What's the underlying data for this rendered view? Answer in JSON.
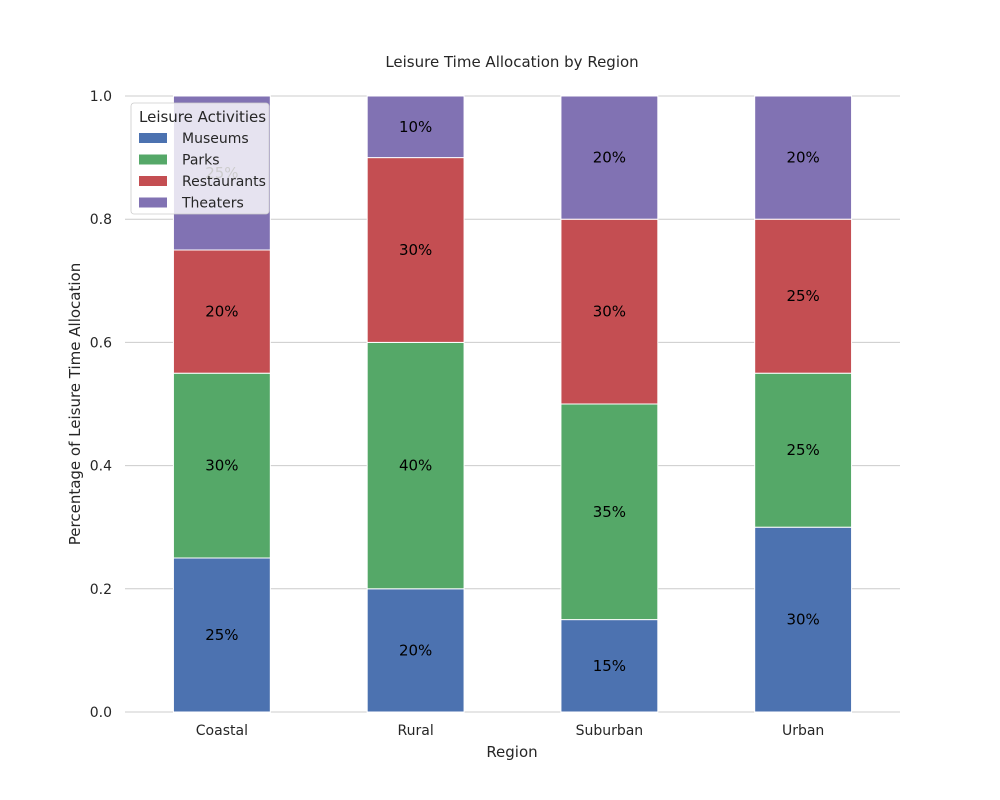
{
  "chart_data": {
    "type": "bar",
    "stacked": true,
    "title": "Leisure Time Allocation by Region",
    "xlabel": "Region",
    "ylabel": "Percentage of Leisure Time Allocation",
    "categories": [
      "Coastal",
      "Rural",
      "Suburban",
      "Urban"
    ],
    "ylim": [
      0,
      1.0
    ],
    "yticks": [
      "0.0",
      "0.2",
      "0.4",
      "0.6",
      "0.8",
      "1.0"
    ],
    "grid": true,
    "legend": {
      "title": "Leisure Activities",
      "placement": "top-left"
    },
    "series": [
      {
        "name": "Museums",
        "color": "#4c72b0",
        "values": [
          0.25,
          0.2,
          0.15,
          0.3
        ],
        "labels": [
          "25%",
          "20%",
          "15%",
          "30%"
        ]
      },
      {
        "name": "Parks",
        "color": "#55a868",
        "values": [
          0.3,
          0.4,
          0.35,
          0.25
        ],
        "labels": [
          "30%",
          "40%",
          "35%",
          "25%"
        ]
      },
      {
        "name": "Restaurants",
        "color": "#c44e52",
        "values": [
          0.2,
          0.3,
          0.3,
          0.25
        ],
        "labels": [
          "20%",
          "30%",
          "30%",
          "25%"
        ]
      },
      {
        "name": "Theaters",
        "color": "#8172b3",
        "values": [
          0.25,
          0.1,
          0.2,
          0.2
        ],
        "labels": [
          "25%",
          "10%",
          "20%",
          "20%"
        ]
      }
    ]
  }
}
